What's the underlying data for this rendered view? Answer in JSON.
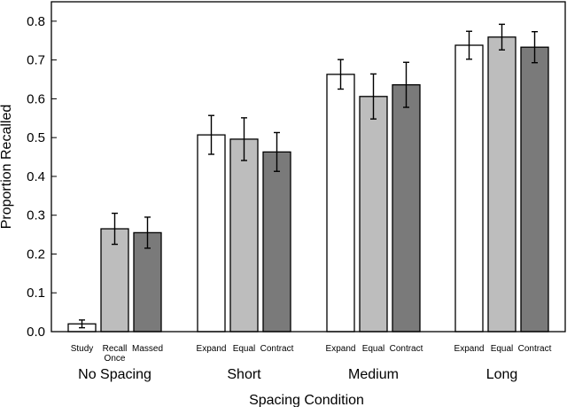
{
  "chart_data": {
    "type": "bar",
    "xlabel": "Spacing Condition",
    "ylabel": "Proportion Recalled",
    "ylim": [
      0,
      0.85
    ],
    "yticks": [
      0.0,
      0.1,
      0.2,
      0.3,
      0.4,
      0.5,
      0.6,
      0.7,
      0.8
    ],
    "ytick_labels": [
      "0.0",
      "0.1",
      "0.2",
      "0.3",
      "0.4",
      "0.5",
      "0.6",
      "0.7",
      "0.8"
    ],
    "grid": false,
    "legend": "none",
    "colors": [
      "#ffffff",
      "#bdbdbd",
      "#7a7a7a"
    ],
    "groups": [
      {
        "name": "No Spacing",
        "bars": [
          {
            "label": [
              "Study"
            ],
            "value": 0.02,
            "err": 0.01
          },
          {
            "label": [
              "Recall",
              "Once"
            ],
            "value": 0.265,
            "err": 0.04
          },
          {
            "label": [
              "Massed"
            ],
            "value": 0.255,
            "err": 0.04
          }
        ]
      },
      {
        "name": "Short",
        "bars": [
          {
            "label": [
              "Expand"
            ],
            "value": 0.507,
            "err": 0.05
          },
          {
            "label": [
              "Equal"
            ],
            "value": 0.496,
            "err": 0.055
          },
          {
            "label": [
              "Contract"
            ],
            "value": 0.463,
            "err": 0.05
          }
        ]
      },
      {
        "name": "Medium",
        "bars": [
          {
            "label": [
              "Expand"
            ],
            "value": 0.663,
            "err": 0.038
          },
          {
            "label": [
              "Equal"
            ],
            "value": 0.606,
            "err": 0.058
          },
          {
            "label": [
              "Contract"
            ],
            "value": 0.636,
            "err": 0.058
          }
        ]
      },
      {
        "name": "Long",
        "bars": [
          {
            "label": [
              "Expand"
            ],
            "value": 0.738,
            "err": 0.036
          },
          {
            "label": [
              "Equal"
            ],
            "value": 0.759,
            "err": 0.033
          },
          {
            "label": [
              "Contract"
            ],
            "value": 0.733,
            "err": 0.04
          }
        ]
      }
    ]
  }
}
